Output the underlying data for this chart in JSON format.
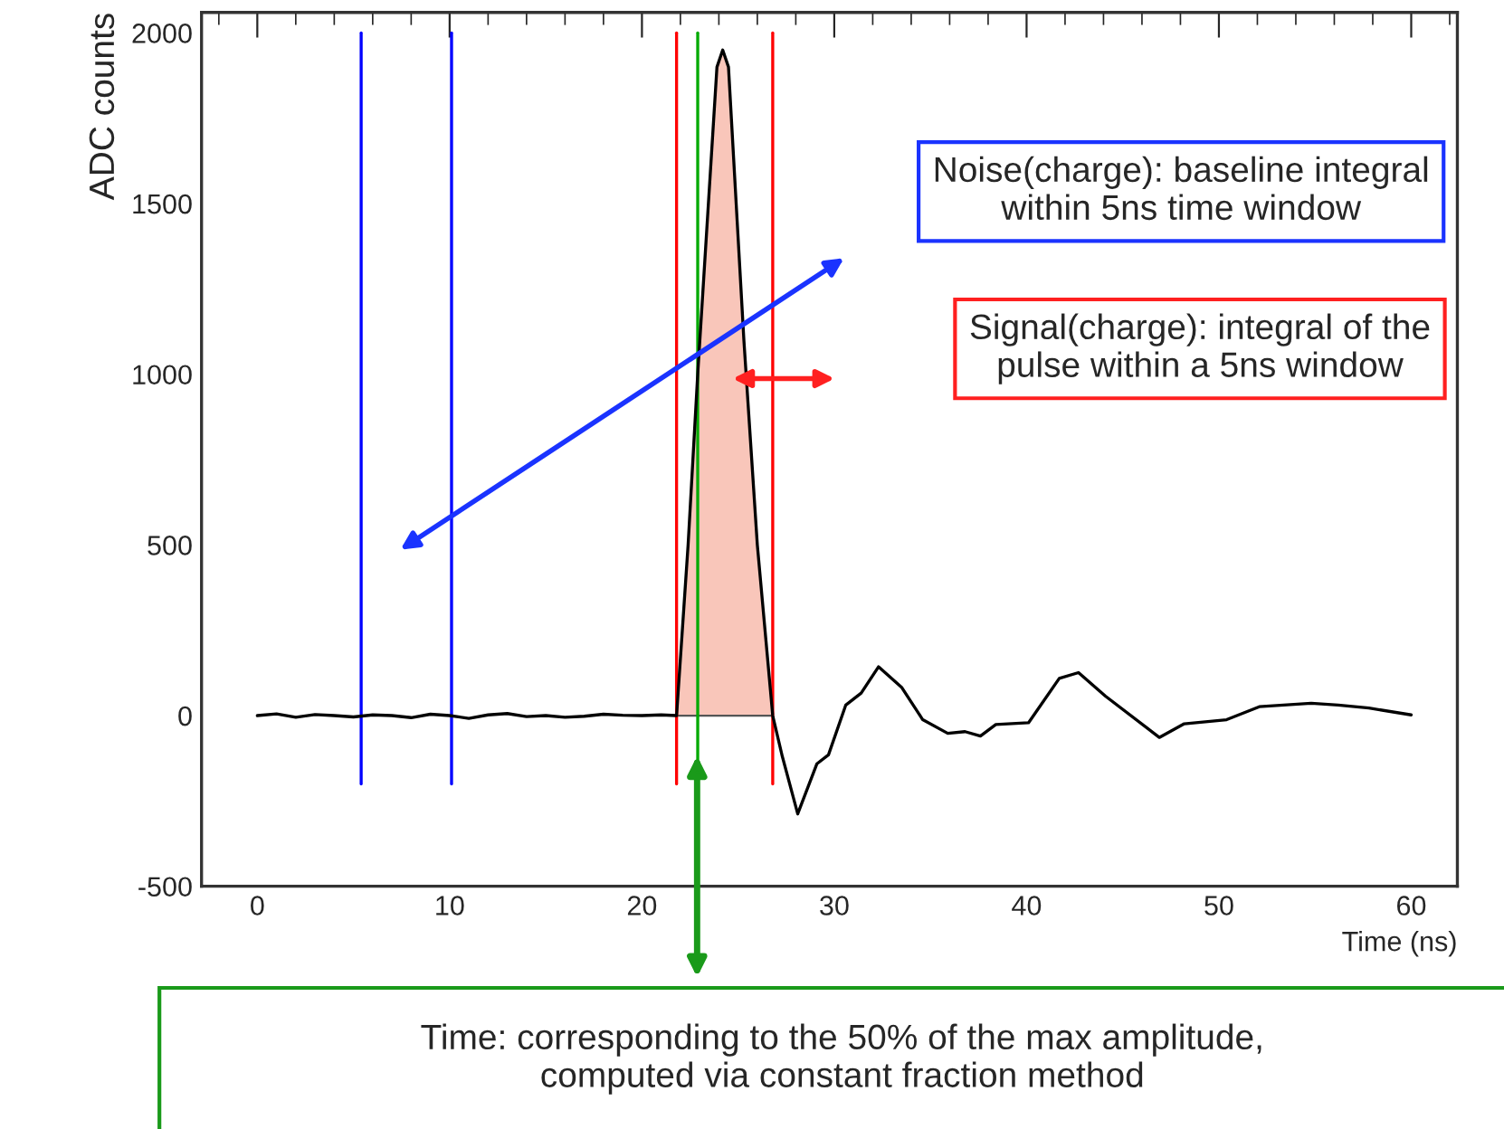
{
  "chart_data": {
    "type": "line",
    "xlabel": "Time (ns)",
    "ylabel": "ADC counts",
    "xlim": [
      -2.9,
      62.4
    ],
    "ylim": [
      -500,
      2060
    ],
    "xticks": [
      0,
      10,
      20,
      30,
      40,
      50,
      60
    ],
    "yticks": [
      -500,
      0,
      500,
      1000,
      1500,
      2000
    ],
    "grid": false,
    "marker": "none",
    "line_style": "solid",
    "series": [
      {
        "type": "area",
        "color": "#f9c6ba",
        "x": [
          21.8,
          22.4,
          22.9,
          23.4,
          23.9,
          24.2,
          24.5,
          25.3,
          26.0,
          26.8
        ],
        "values": [
          0,
          500,
          1000,
          1450,
          1900,
          1950,
          1900,
          1100,
          500,
          0
        ]
      },
      {
        "type": "line",
        "color": "#0000ff",
        "x": [
          5.4,
          5.4
        ],
        "values": [
          -200,
          2000
        ]
      },
      {
        "type": "line",
        "color": "#0000ff",
        "x": [
          10.1,
          10.1
        ],
        "values": [
          -200,
          2000
        ]
      },
      {
        "type": "line",
        "color": "#ff0000",
        "x": [
          21.8,
          21.8
        ],
        "values": [
          -200,
          2000
        ]
      },
      {
        "type": "line",
        "color": "#ff0000",
        "x": [
          26.8,
          26.8
        ],
        "values": [
          -200,
          2000
        ]
      },
      {
        "type": "line",
        "color": "#00aa00",
        "x": [
          22.9,
          22.9
        ],
        "values": [
          -200,
          2000
        ]
      },
      {
        "color": "#000000",
        "x": [
          0,
          1,
          2,
          3,
          4,
          5,
          6,
          7,
          8,
          9,
          10,
          11,
          12,
          13,
          14,
          15,
          16,
          17,
          18,
          19,
          20,
          21,
          21.8,
          22.4,
          22.9,
          23.4,
          23.9,
          24.2,
          24.5,
          25.3,
          26.0,
          26.8,
          27.3,
          28.1,
          29.1,
          29.7,
          30.6,
          31.4,
          32.3,
          33.5,
          34.6,
          35.9,
          36.8,
          37.6,
          38.4,
          40.1,
          41.7,
          42.7,
          44.1,
          46.9,
          48.2,
          50.4,
          52.1,
          54.8,
          56.2,
          57.8,
          60.0
        ],
        "values": [
          0,
          5,
          -5,
          3,
          0,
          -4,
          2,
          0,
          -6,
          4,
          0,
          -8,
          2,
          6,
          -3,
          0,
          -5,
          -2,
          4,
          1,
          0,
          2,
          0,
          500,
          1000,
          1450,
          1900,
          1950,
          1900,
          1100,
          500,
          0,
          -120,
          -288,
          -141,
          -115,
          31,
          66,
          143,
          83,
          -12,
          -52,
          -47,
          -60,
          -26,
          -21,
          109,
          126,
          57,
          -64,
          -24,
          -12,
          26,
          36,
          31,
          22,
          2
        ]
      }
    ],
    "annotations": [
      "Noise(charge): baseline integral\nwithin 5ns time window",
      "Signal(charge): integral of the\npulse within a 5ns window",
      "Time: corresponding to the 50% of the max amplitude,\ncomputed via constant fraction method"
    ]
  }
}
